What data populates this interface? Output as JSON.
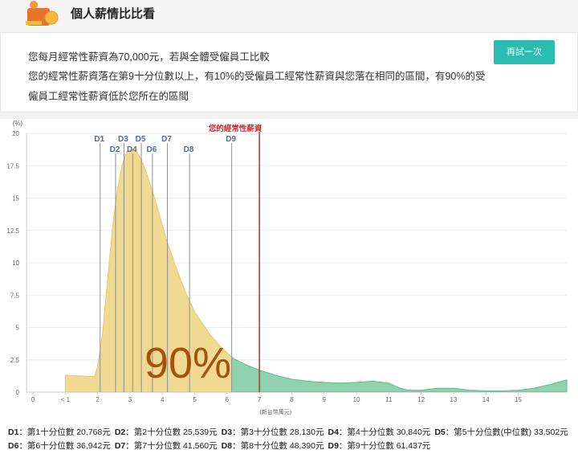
{
  "header": {
    "title": "個人薪情比比看"
  },
  "summary": {
    "lines": [
      "您每月經常性薪資為70,000元，若與全體受僱員工比較",
      "您的經常性薪資落在第9十分位數以上，有10%的受僱員工經常性薪資與您落在相同的區間，有90%的受",
      "僱員工經常性薪資低於您所在的區間"
    ],
    "button": "再試一次"
  },
  "chart_data": {
    "type": "area",
    "y_unit_label": "(%)",
    "x_label": "(新台幣萬元)",
    "x": [
      1,
      1.5,
      1.9,
      2.0,
      2.15,
      2.3,
      2.45,
      2.6,
      2.75,
      2.9,
      3.05,
      3.2,
      3.35,
      3.5,
      3.7,
      3.9,
      4.1,
      4.4,
      4.7,
      5.0,
      5.4,
      5.8,
      6.2,
      6.6,
      7.0,
      7.5,
      8.0,
      8.5,
      9.0,
      9.5,
      10.0,
      10.5,
      11.0,
      11.3,
      11.6,
      12.0,
      12.5,
      13.0,
      13.5,
      14.0,
      14.5,
      15.0,
      15.5,
      16.0,
      16.5
    ],
    "values": [
      1.3,
      1.25,
      1.2,
      2.0,
      4.5,
      8.5,
      12.5,
      15.5,
      17.5,
      18.6,
      18.8,
      18.6,
      18.0,
      17.0,
      15.5,
      13.8,
      12.0,
      9.8,
      7.8,
      6.2,
      4.7,
      3.5,
      2.6,
      2.1,
      1.7,
      1.3,
      1.0,
      0.85,
      0.75,
      0.7,
      0.75,
      0.85,
      0.7,
      0.35,
      0.15,
      0.15,
      0.3,
      0.3,
      0.15,
      0.1,
      0.1,
      0.15,
      0.3,
      0.6,
      0.95
    ],
    "colors": [
      "#f0da92",
      "#8fd2af"
    ],
    "stroke_colors": [
      "#e8c865",
      "#5fbb8d"
    ],
    "xlim": [
      -0.2,
      16.5
    ],
    "ylim": [
      0,
      20
    ],
    "xticks": [
      0,
      {
        "value": 1,
        "label": "< 1"
      },
      2,
      3,
      4,
      5,
      6,
      7,
      8,
      9,
      10,
      11,
      12,
      13,
      14,
      15
    ],
    "yticks": [
      0,
      2.5,
      5,
      7.5,
      10,
      12.5,
      15,
      17.5,
      20
    ],
    "grid": true,
    "annotation": "90%",
    "marker": {
      "label": "您的經常性薪資",
      "value": 7,
      "color": "#d0282e"
    },
    "deciles": [
      {
        "label": "D1",
        "text": "：第1十分位數",
        "value_label": "20,768元",
        "value": 2.0768
      },
      {
        "label": "D2",
        "text": "：第2十分位數",
        "value_label": "25,539元",
        "value": 2.5539
      },
      {
        "label": "D3",
        "text": "：第3十分位數",
        "value_label": "28,130元",
        "value": 2.813
      },
      {
        "label": "D4",
        "text": "：第4十分位數",
        "value_label": "30,840元",
        "value": 3.084
      },
      {
        "label": "D5",
        "text": "：第5十分位數(中位數)",
        "value_label": "33,502元",
        "value": 3.3502
      },
      {
        "label": "D6",
        "text": "：第6十分位數",
        "value_label": "36,942元",
        "value": 3.6942
      },
      {
        "label": "D7",
        "text": "：第7十分位數",
        "value_label": "41,560元",
        "value": 4.156
      },
      {
        "label": "D8",
        "text": "：第8十分位數",
        "value_label": "48,390元",
        "value": 4.839
      },
      {
        "label": "D9",
        "text": "：第9十分位數",
        "value_label": "61,437元",
        "value": 6.1437
      }
    ]
  }
}
